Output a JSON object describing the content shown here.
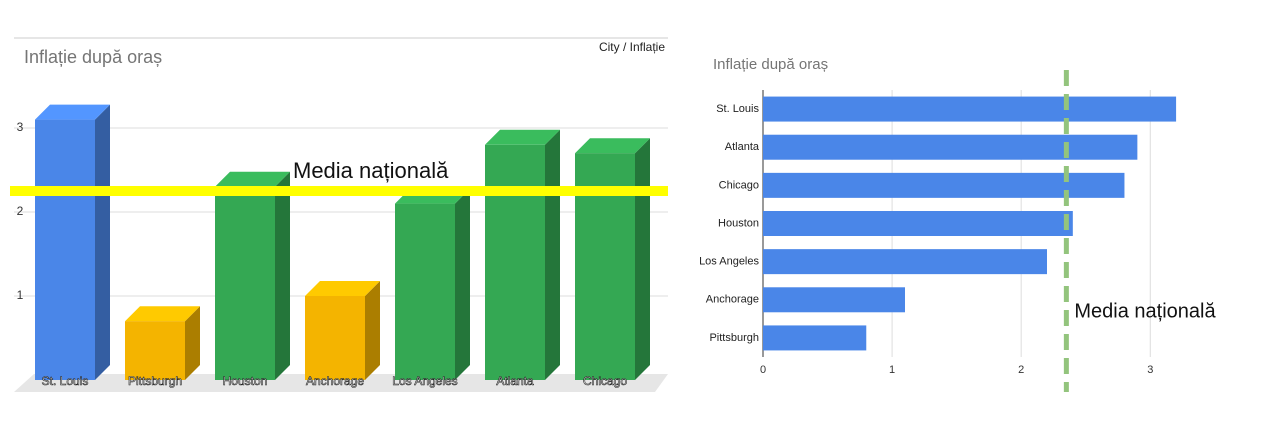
{
  "chart_data": [
    {
      "type": "bar3d",
      "title": "Inflație după oraș",
      "legend_label": "City / Inflație",
      "categories": [
        "St. Louis",
        "Pittsburgh",
        "Houston",
        "Anchorage",
        "Los Angeles",
        "Atlanta",
        "Chicago"
      ],
      "values": [
        3.1,
        0.7,
        2.3,
        1.0,
        2.1,
        2.8,
        2.7
      ],
      "colors": [
        "#4a86e8",
        "#f4b400",
        "#34a853",
        "#f4b400",
        "#34a853",
        "#34a853",
        "#34a853"
      ],
      "ylim": [
        0,
        4
      ],
      "yticks": [
        1,
        2,
        3
      ],
      "grid": true,
      "reference_line": {
        "value": 2.25,
        "label": "Media națională",
        "color": "#ffff00"
      }
    },
    {
      "type": "hbar",
      "title": "Inflație după oraș",
      "categories": [
        "St. Louis",
        "Atlanta",
        "Chicago",
        "Houston",
        "Los Angeles",
        "Anchorage",
        "Pittsburgh"
      ],
      "values": [
        3.2,
        2.9,
        2.8,
        2.4,
        2.2,
        1.1,
        0.8
      ],
      "color": "#4a86e8",
      "xlim": [
        0,
        3.3
      ],
      "xticks": [
        0,
        1,
        2,
        3
      ],
      "grid": true,
      "reference_line": {
        "value": 2.35,
        "label": "Media națională",
        "color": "#93c47d"
      }
    }
  ]
}
